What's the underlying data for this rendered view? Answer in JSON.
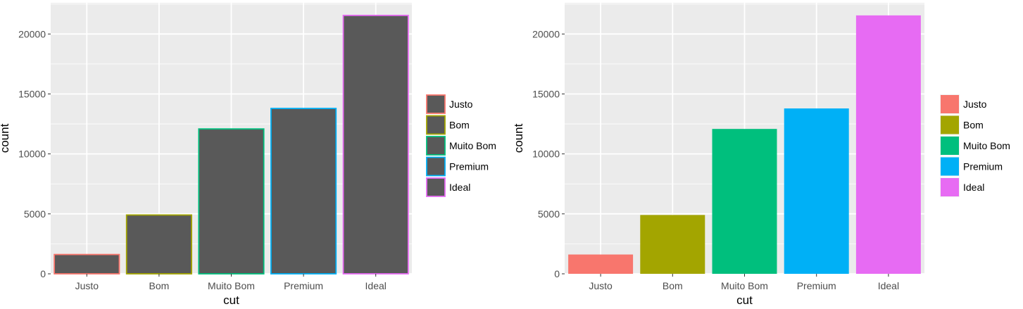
{
  "chart_data": [
    {
      "type": "bar",
      "fill_style": "outline",
      "xlabel": "cut",
      "ylabel": "count",
      "categories": [
        "Justo",
        "Bom",
        "Muito Bom",
        "Premium",
        "Ideal"
      ],
      "values": [
        1610,
        4906,
        12082,
        13791,
        21551
      ],
      "ylim": [
        0,
        22600
      ],
      "yticks": [
        0,
        5000,
        10000,
        15000,
        20000
      ],
      "ytick_labels": [
        "0",
        "5000",
        "10000",
        "15000",
        "20000"
      ],
      "legend": {
        "placement": "right",
        "entries": [
          "Justo",
          "Bom",
          "Muito Bom",
          "Premium",
          "Ideal"
        ]
      },
      "bar_fill": "#595959",
      "colors": [
        "#F8766D",
        "#A3A500",
        "#00BF7D",
        "#00B0F6",
        "#E76BF3"
      ],
      "panel_background": "#EBEBEB",
      "grid": true
    },
    {
      "type": "bar",
      "fill_style": "filled",
      "xlabel": "cut",
      "ylabel": "count",
      "categories": [
        "Justo",
        "Bom",
        "Muito Bom",
        "Premium",
        "Ideal"
      ],
      "values": [
        1610,
        4906,
        12082,
        13791,
        21551
      ],
      "ylim": [
        0,
        22600
      ],
      "yticks": [
        0,
        5000,
        10000,
        15000,
        20000
      ],
      "ytick_labels": [
        "0",
        "5000",
        "10000",
        "15000",
        "20000"
      ],
      "legend": {
        "placement": "right",
        "entries": [
          "Justo",
          "Bom",
          "Muito Bom",
          "Premium",
          "Ideal"
        ]
      },
      "colors": [
        "#F8766D",
        "#A3A500",
        "#00BF7D",
        "#00B0F6",
        "#E76BF3"
      ],
      "panel_background": "#EBEBEB",
      "grid": true
    }
  ]
}
